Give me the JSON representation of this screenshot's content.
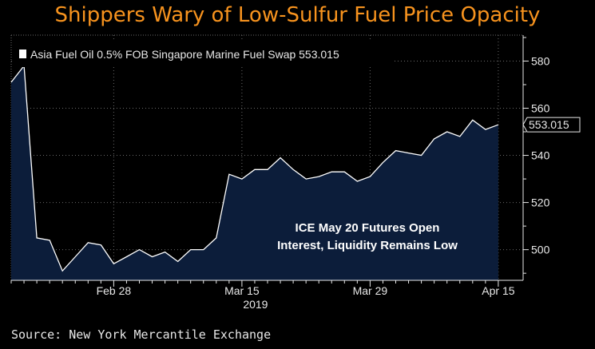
{
  "title": "Shippers Wary of Low-Sulfur Fuel Price Opacity",
  "source": "Source: New York Mercantile Exchange",
  "colors": {
    "background": "#000000",
    "title": "#f7931e",
    "area_fill": "#0c1d3a",
    "area_line": "#ffffff",
    "grid": "#6a6a6a",
    "text": "#e8e8e8"
  },
  "chart_data": {
    "type": "area",
    "title": "Shippers Wary of Low-Sulfur Fuel Price Opacity",
    "series": [
      {
        "name": "Asia Fuel Oil 0.5% FOB Singapore Marine Fuel Swap",
        "last_value": 553.015,
        "values": [
          571,
          578,
          505,
          504,
          491,
          497,
          503,
          502,
          494,
          497,
          500,
          497,
          499,
          495,
          500,
          500,
          505,
          532,
          530,
          534,
          534,
          539,
          534,
          530,
          531,
          533,
          533,
          529,
          531,
          537,
          542,
          541,
          540,
          547,
          550,
          548,
          555,
          551,
          553
        ]
      }
    ],
    "legend": {
      "label": "Asia Fuel Oil 0.5% FOB Singapore Marine Fuel Swap 553.015",
      "position": "top-left"
    },
    "last_value_label": "553.015",
    "x_ticks": [
      {
        "index": 8,
        "label": "Feb 28"
      },
      {
        "index": 18,
        "label": "Mar 15"
      },
      {
        "index": 28,
        "label": "Mar 29"
      },
      {
        "index": 38,
        "label": "Apr 15"
      }
    ],
    "x_sublabel": "2019",
    "y_ticks": [
      500,
      520,
      540,
      560,
      580
    ],
    "ylim": [
      487,
      591
    ],
    "grid": true,
    "annotation": [
      "ICE May 20 Futures Open",
      "Interest, Liquidity Remains Low"
    ]
  }
}
